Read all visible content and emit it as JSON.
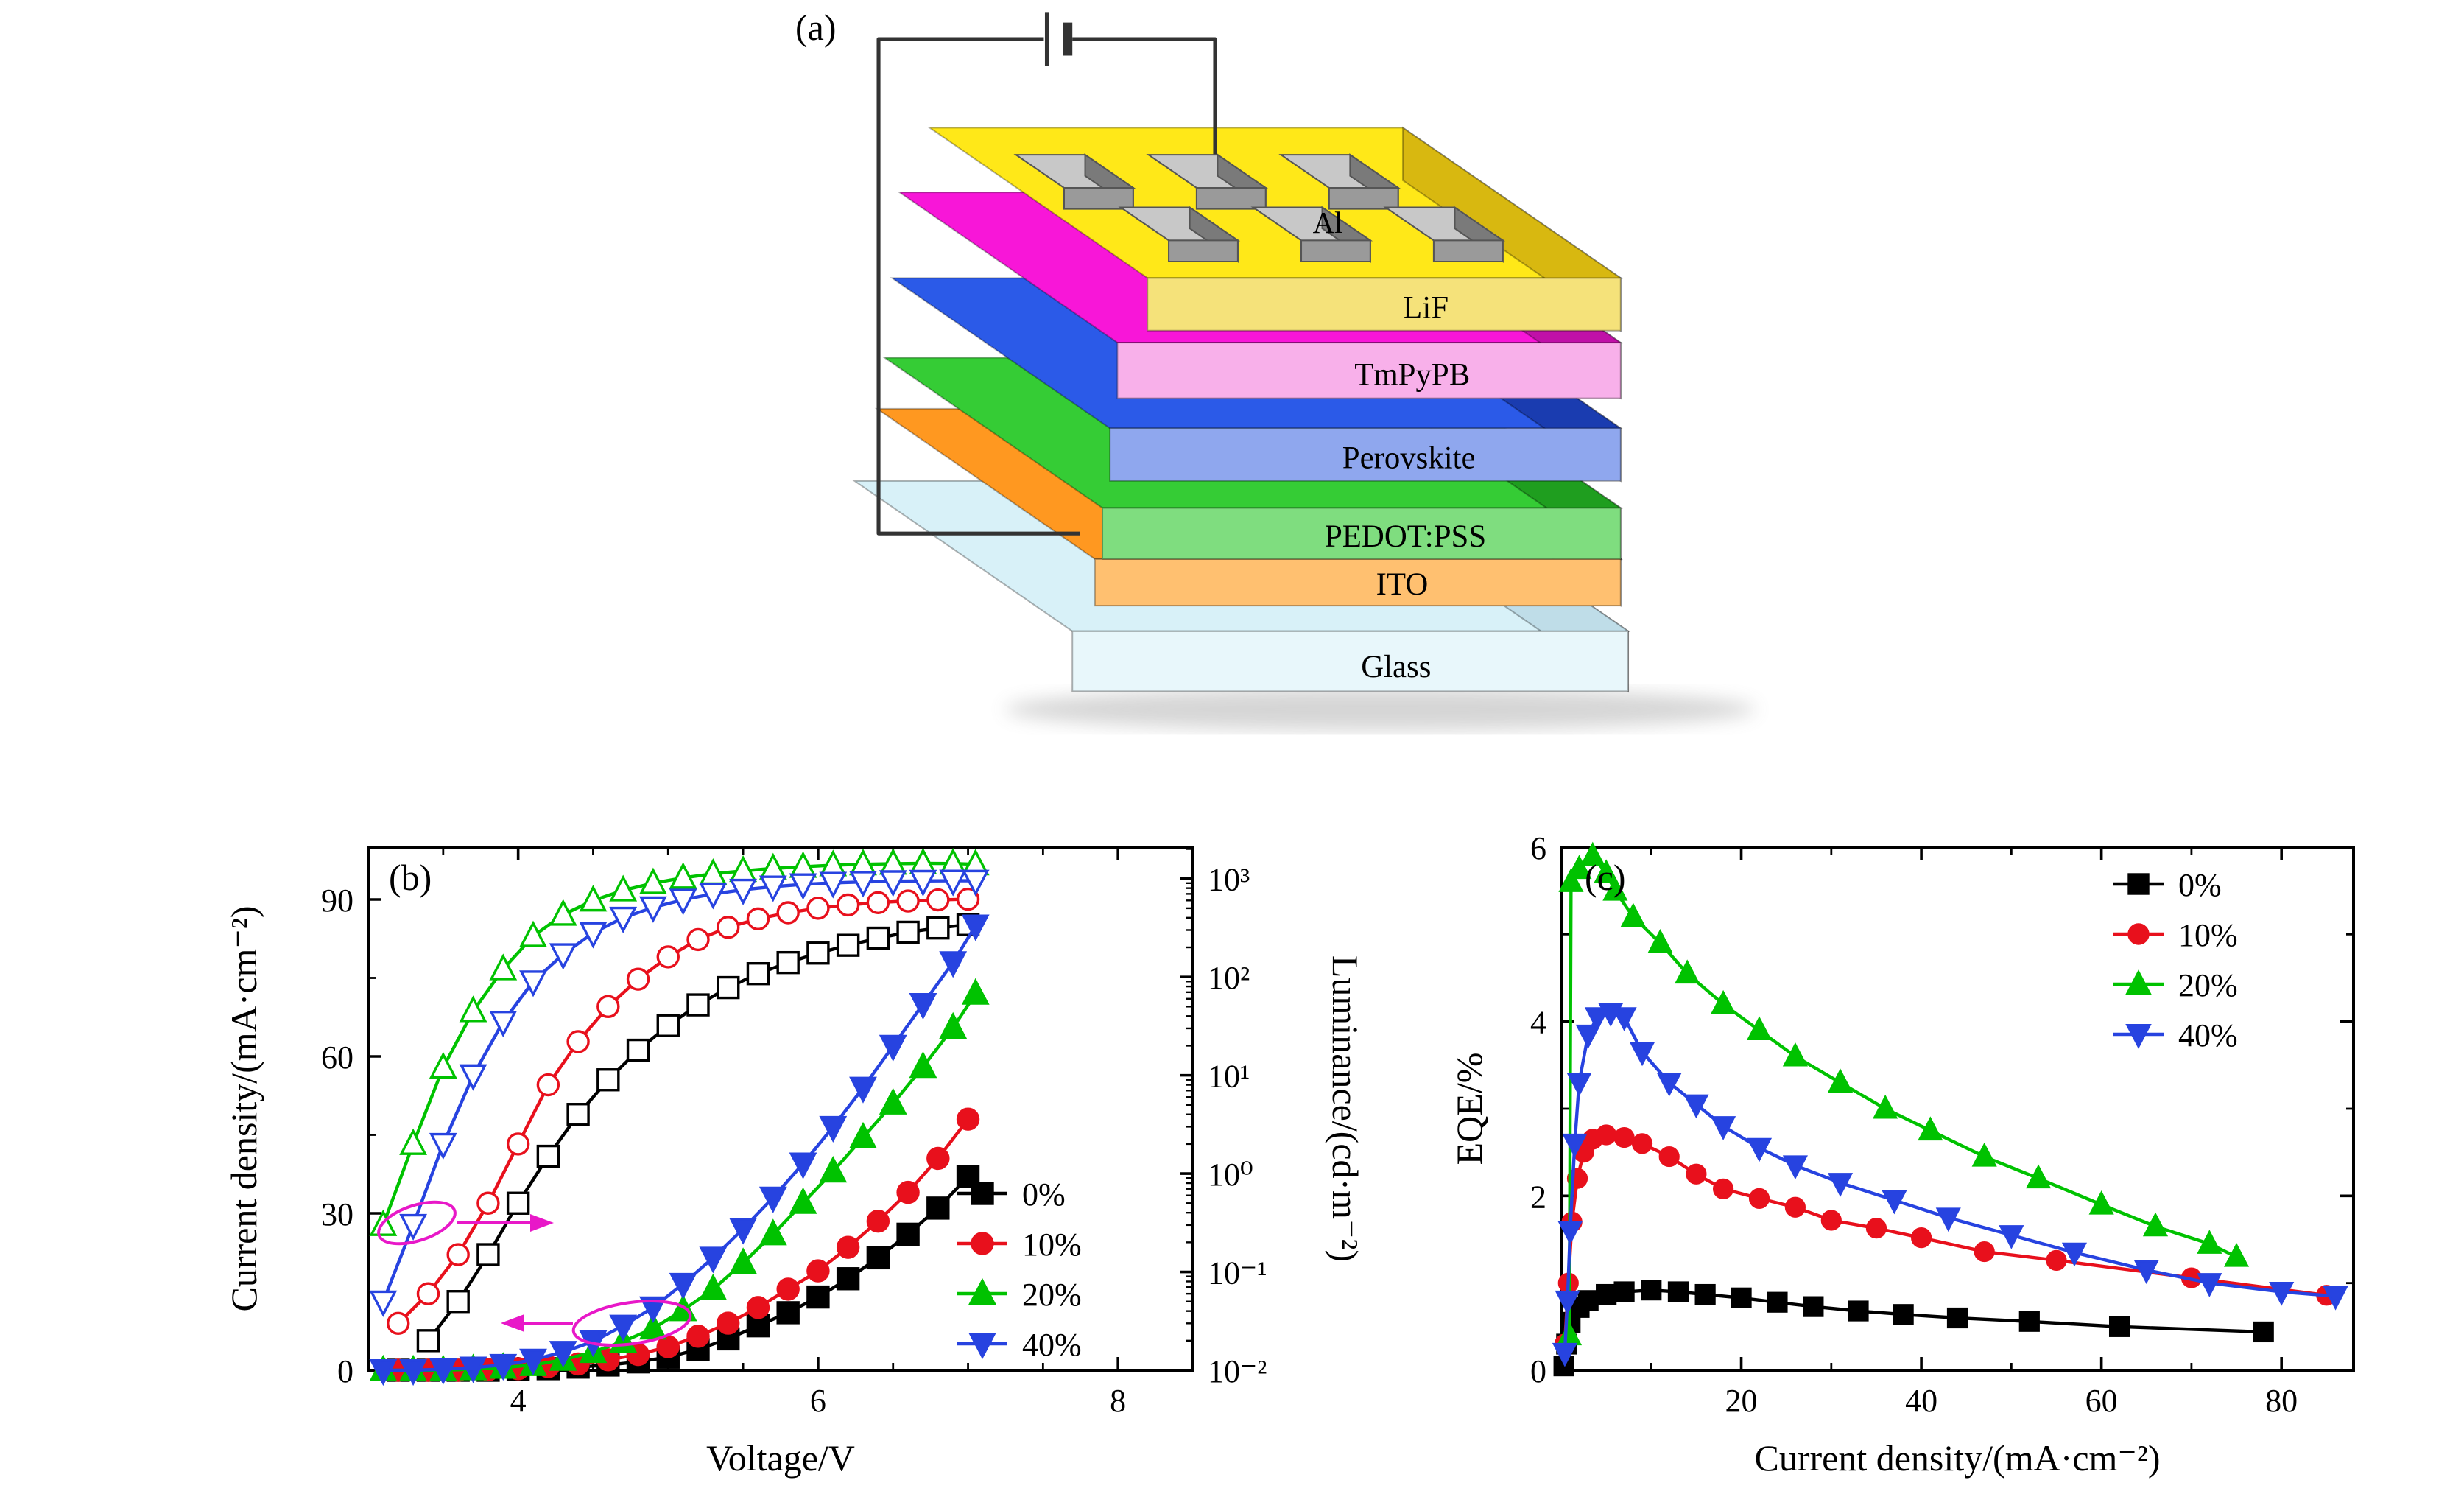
{
  "colors": {
    "annotation": "#e818c8",
    "axis": "#000000",
    "series_0": "#000000",
    "series_10": "#e8101c",
    "series_20": "#00c200",
    "series_40": "#2743e0"
  },
  "panel_a": {
    "label": "(a)",
    "al_label": "Al",
    "layers_bottom_to_top": [
      {
        "name": "Glass",
        "top": "#d8f1f8",
        "front": "#e8f7fb",
        "side": "#bfdde8"
      },
      {
        "name": "ITO",
        "top": "#ff9820",
        "front": "#ffc070",
        "side": "#d07808"
      },
      {
        "name": "PEDOT:PSS",
        "top": "#35cc35",
        "front": "#7fdd7f",
        "side": "#1f9e1f"
      },
      {
        "name": "Perovskite",
        "top": "#2b5ae8",
        "front": "#8fa7ee",
        "side": "#1a3cb0"
      },
      {
        "name": "TmPyPB",
        "top": "#f816d8",
        "front": "#f8b0ea",
        "side": "#c010a8"
      },
      {
        "name": "LiF",
        "top": "#ffe818",
        "front": "#f5e27a",
        "side": "#d8b810"
      }
    ]
  },
  "chart_data": [
    {
      "id": "panel_b",
      "type": "line",
      "panel_label": "(b)",
      "xlabel": "Voltage/V",
      "ylabel_left": "Current density/(mA·cm⁻²)",
      "ylabel_right": "Luminance/(cd·m⁻²)",
      "xlim": [
        3,
        8.5
      ],
      "x_ticks": [
        4,
        6,
        8
      ],
      "ylim_left": [
        0,
        100
      ],
      "y_ticks_left": [
        0,
        30,
        60,
        90
      ],
      "y_minor_left": [
        15,
        45,
        75
      ],
      "ylim_right_log": [
        -2,
        3.32
      ],
      "y_ticks_right_labels": [
        "10⁻²",
        "10⁻¹",
        "10⁰",
        "10¹",
        "10²",
        "10³"
      ],
      "y_ticks_right_exponents": [
        -2,
        -1,
        0,
        1,
        2,
        3
      ],
      "legend": [
        "0%",
        "10%",
        "20%",
        "40%"
      ],
      "current_density_series": [
        {
          "name": "0%",
          "symbol": "square",
          "color": "#000000",
          "x": [
            3.2,
            3.4,
            3.6,
            3.8,
            4.0,
            4.2,
            4.4,
            4.6,
            4.8,
            5.0,
            5.2,
            5.4,
            5.6,
            5.8,
            6.0,
            6.2,
            6.4,
            6.6,
            6.8,
            7.0
          ],
          "y": [
            0,
            0,
            0,
            0,
            0.1,
            0.3,
            0.6,
            1.0,
            1.6,
            2.5,
            4,
            6,
            8.5,
            11,
            14,
            17.5,
            21.5,
            26,
            31,
            37
          ]
        },
        {
          "name": "10%",
          "symbol": "circle",
          "color": "#e8101c",
          "x": [
            3.2,
            3.4,
            3.6,
            3.8,
            4.0,
            4.2,
            4.4,
            4.6,
            4.8,
            5.0,
            5.2,
            5.4,
            5.6,
            5.8,
            6.0,
            6.2,
            6.4,
            6.6,
            6.8,
            7.0
          ],
          "y": [
            0,
            0,
            0,
            0.1,
            0.3,
            0.7,
            1.2,
            2,
            3,
            4.5,
            6.5,
            9,
            12,
            15.5,
            19,
            23.5,
            28.5,
            34,
            40.5,
            48
          ]
        },
        {
          "name": "20%",
          "symbol": "triangle-up",
          "color": "#00c200",
          "x": [
            3.1,
            3.3,
            3.5,
            3.7,
            3.9,
            4.1,
            4.3,
            4.5,
            4.7,
            4.9,
            5.1,
            5.3,
            5.5,
            5.7,
            5.9,
            6.1,
            6.3,
            6.5,
            6.7,
            6.9,
            7.05
          ],
          "y": [
            0,
            0,
            0,
            0.2,
            0.5,
            1,
            2,
            3.5,
            5.5,
            8,
            11.5,
            15.5,
            20.5,
            26,
            32,
            38,
            44.5,
            51,
            58,
            65.5,
            72
          ]
        },
        {
          "name": "40%",
          "symbol": "triangle-down",
          "color": "#2743e0",
          "x": [
            3.1,
            3.3,
            3.5,
            3.7,
            3.9,
            4.1,
            4.3,
            4.5,
            4.7,
            4.9,
            5.1,
            5.3,
            5.5,
            5.7,
            5.9,
            6.1,
            6.3,
            6.5,
            6.7,
            6.9,
            7.05
          ],
          "y": [
            0,
            0,
            0.2,
            0.5,
            1,
            2,
            3.5,
            5.5,
            8.5,
            12,
            16.5,
            21.5,
            27,
            33,
            39.5,
            46.5,
            54,
            62,
            70,
            78,
            85
          ]
        }
      ],
      "luminance_series": [
        {
          "name": "0%",
          "symbol": "square",
          "color": "#000000",
          "x": [
            3.4,
            3.6,
            3.8,
            4.0,
            4.2,
            4.4,
            4.6,
            4.8,
            5.0,
            5.2,
            5.4,
            5.6,
            5.8,
            6.0,
            6.2,
            6.4,
            6.6,
            6.8,
            7.0
          ],
          "y": [
            0.02,
            0.05,
            0.15,
            0.5,
            1.5,
            4,
            9,
            18,
            32,
            52,
            78,
            108,
            140,
            175,
            210,
            248,
            285,
            315,
            340
          ]
        },
        {
          "name": "10%",
          "symbol": "circle",
          "color": "#e8101c",
          "x": [
            3.2,
            3.4,
            3.6,
            3.8,
            4.0,
            4.2,
            4.4,
            4.6,
            4.8,
            5.0,
            5.2,
            5.4,
            5.6,
            5.8,
            6.0,
            6.2,
            6.4,
            6.6,
            6.8,
            7.0
          ],
          "y": [
            0.03,
            0.06,
            0.15,
            0.5,
            2,
            8,
            22,
            50,
            95,
            160,
            240,
            320,
            390,
            450,
            500,
            540,
            570,
            592,
            608,
            618
          ]
        },
        {
          "name": "20%",
          "symbol": "triangle-up",
          "color": "#00c200",
          "x": [
            3.1,
            3.3,
            3.5,
            3.7,
            3.9,
            4.1,
            4.3,
            4.5,
            4.7,
            4.9,
            5.1,
            5.3,
            5.5,
            5.7,
            5.9,
            6.1,
            6.3,
            6.5,
            6.7,
            6.9,
            7.05
          ],
          "y": [
            0.3,
            2,
            12,
            45,
            120,
            260,
            430,
            600,
            760,
            900,
            1020,
            1120,
            1200,
            1270,
            1320,
            1370,
            1400,
            1420,
            1430,
            1425,
            1400
          ]
        },
        {
          "name": "40%",
          "symbol": "triangle-down",
          "color": "#2743e0",
          "x": [
            3.1,
            3.3,
            3.5,
            3.7,
            3.9,
            4.1,
            4.3,
            4.5,
            4.7,
            4.9,
            5.1,
            5.3,
            5.5,
            5.7,
            5.9,
            6.1,
            6.3,
            6.5,
            6.7,
            6.9,
            7.05
          ],
          "y": [
            0.05,
            0.3,
            2,
            10,
            35,
            90,
            170,
            280,
            400,
            510,
            610,
            700,
            770,
            830,
            875,
            905,
            925,
            940,
            948,
            952,
            950
          ]
        }
      ]
    },
    {
      "id": "panel_c",
      "type": "line",
      "panel_label": "(c)",
      "xlabel": "Current density/(mA·cm⁻²)",
      "ylabel": "EQE/%",
      "xlim": [
        0,
        88
      ],
      "x_ticks": [
        20,
        40,
        60,
        80
      ],
      "x_minor": [
        10,
        30,
        50,
        70
      ],
      "ylim": [
        0,
        6
      ],
      "y_ticks": [
        0,
        2,
        4,
        6
      ],
      "y_minor": [
        1,
        3,
        5
      ],
      "legend": [
        "0%",
        "10%",
        "20%",
        "40%"
      ],
      "series": [
        {
          "name": "0%",
          "symbol": "square",
          "color": "#000000",
          "x": [
            0.3,
            0.6,
            1,
            2,
            3,
            5,
            7,
            10,
            13,
            16,
            20,
            24,
            28,
            33,
            38,
            44,
            52,
            62,
            78
          ],
          "y": [
            0.05,
            0.3,
            0.55,
            0.72,
            0.8,
            0.87,
            0.9,
            0.92,
            0.9,
            0.87,
            0.83,
            0.78,
            0.73,
            0.68,
            0.64,
            0.6,
            0.56,
            0.5,
            0.44
          ]
        },
        {
          "name": "10%",
          "symbol": "circle",
          "color": "#e8101c",
          "x": [
            0.4,
            0.8,
            1.2,
            1.8,
            2.5,
            3.5,
            5,
            7,
            9,
            12,
            15,
            18,
            22,
            26,
            30,
            35,
            40,
            47,
            55,
            70,
            85
          ],
          "y": [
            0.3,
            1.0,
            1.7,
            2.2,
            2.5,
            2.65,
            2.7,
            2.67,
            2.6,
            2.45,
            2.25,
            2.08,
            1.97,
            1.87,
            1.72,
            1.63,
            1.52,
            1.36,
            1.26,
            1.06,
            0.86
          ]
        },
        {
          "name": "20%",
          "symbol": "triangle-up",
          "color": "#00c200",
          "x": [
            0.9,
            1.1,
            2,
            3.5,
            5,
            6,
            8,
            11,
            14,
            18,
            22,
            26,
            31,
            36,
            41,
            47,
            53,
            60,
            66,
            72,
            75
          ],
          "y": [
            0.4,
            5.6,
            5.75,
            5.9,
            5.7,
            5.5,
            5.2,
            4.9,
            4.55,
            4.2,
            3.9,
            3.6,
            3.3,
            3.0,
            2.75,
            2.45,
            2.2,
            1.9,
            1.65,
            1.45,
            1.3
          ]
        },
        {
          "name": "40%",
          "symbol": "triangle-down",
          "color": "#2743e0",
          "x": [
            0.4,
            0.7,
            1,
            1.5,
            2,
            3,
            4,
            5.5,
            7,
            9,
            12,
            15,
            18,
            22,
            26,
            31,
            37,
            43,
            50,
            57,
            65,
            72,
            80,
            86
          ],
          "y": [
            0.2,
            0.8,
            1.6,
            2.6,
            3.3,
            3.85,
            4.05,
            4.1,
            4.05,
            3.65,
            3.3,
            3.05,
            2.8,
            2.55,
            2.35,
            2.15,
            1.95,
            1.75,
            1.55,
            1.35,
            1.15,
            1.0,
            0.9,
            0.85
          ]
        }
      ]
    }
  ]
}
